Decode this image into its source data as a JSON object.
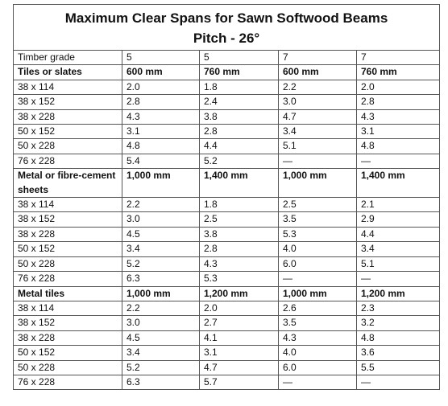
{
  "title_line1": "Maximum Clear Spans for Sawn Softwood Beams",
  "title_line2": "Pitch - 26°",
  "grade_row": {
    "label": "Timber grade",
    "values": [
      "5",
      "5",
      "7",
      "7"
    ]
  },
  "sections": [
    {
      "label": "Tiles or slates",
      "spacings": [
        "600 mm",
        "760 mm",
        "600 mm",
        "760 mm"
      ],
      "rows": [
        {
          "size": "38 x 114",
          "values": [
            "2.0",
            "1.8",
            "2.2",
            "2.0"
          ]
        },
        {
          "size": "38 x 152",
          "values": [
            "2.8",
            "2.4",
            "3.0",
            "2.8"
          ]
        },
        {
          "size": "38 x 228",
          "values": [
            "4.3",
            "3.8",
            "4.7",
            "4.3"
          ]
        },
        {
          "size": "50 x 152",
          "values": [
            "3.1",
            "2.8",
            "3.4",
            "3.1"
          ]
        },
        {
          "size": "50 x 228",
          "values": [
            "4.8",
            "4.4",
            "5.1",
            "4.8"
          ]
        },
        {
          "size": "76 x 228",
          "values": [
            "5.4",
            "5.2",
            "—",
            "—"
          ]
        }
      ]
    },
    {
      "label": "Metal or fibre-cement sheets",
      "spacings": [
        "1,000 mm",
        "1,400 mm",
        "1,000 mm",
        "1,400 mm"
      ],
      "rows": [
        {
          "size": "38 x 114",
          "values": [
            "2.2",
            "1.8",
            "2.5",
            "2.1"
          ]
        },
        {
          "size": "38 x 152",
          "values": [
            "3.0",
            "2.5",
            "3.5",
            "2.9"
          ]
        },
        {
          "size": "38 x 228",
          "values": [
            "4.5",
            "3.8",
            "5.3",
            "4.4"
          ]
        },
        {
          "size": "50 x 152",
          "values": [
            "3.4",
            "2.8",
            "4.0",
            "3.4"
          ]
        },
        {
          "size": "50 x 228",
          "values": [
            "5.2",
            "4.3",
            "6.0",
            "5.1"
          ]
        },
        {
          "size": "76 x 228",
          "values": [
            "6.3",
            "5.3",
            "—",
            "—"
          ]
        }
      ]
    },
    {
      "label": "Metal tiles",
      "spacings": [
        "1,000 mm",
        "1,200 mm",
        "1,000 mm",
        "1,200 mm"
      ],
      "rows": [
        {
          "size": "38 x 114",
          "values": [
            "2.2",
            "2.0",
            "2.6",
            "2.3"
          ]
        },
        {
          "size": "38 x 152",
          "values": [
            "3.0",
            "2.7",
            "3.5",
            "3.2"
          ]
        },
        {
          "size": "38 x 228",
          "values": [
            "4.5",
            "4.1",
            "4.3",
            "4.8"
          ]
        },
        {
          "size": "50 x 152",
          "values": [
            "3.4",
            "3.1",
            "4.0",
            "3.6"
          ]
        },
        {
          "size": "50 x 228",
          "values": [
            "5.2",
            "4.7",
            "6.0",
            "5.5"
          ]
        },
        {
          "size": "76 x 228",
          "values": [
            "6.3",
            "5.7",
            "—",
            "—"
          ]
        }
      ]
    }
  ]
}
